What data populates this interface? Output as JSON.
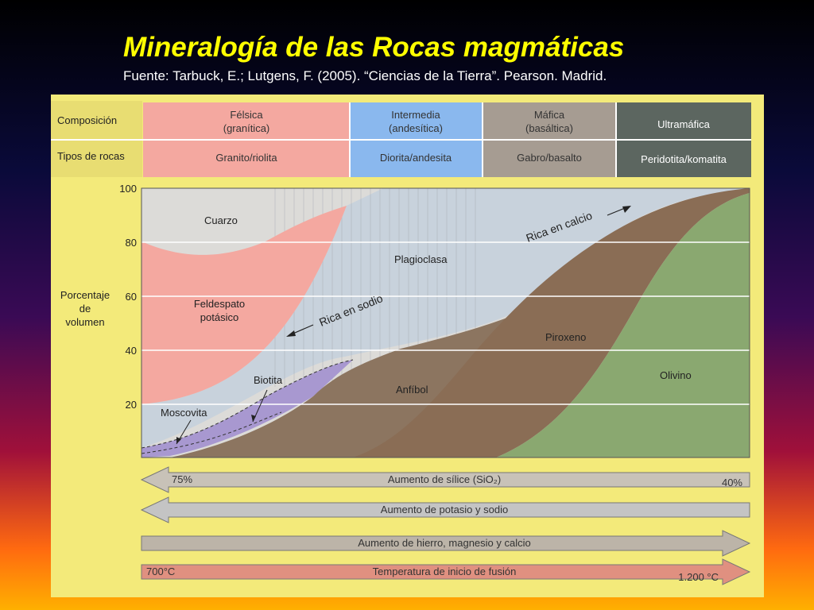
{
  "title": "Mineralogía de las Rocas magmáticas",
  "source": "Fuente: Tarbuck, E.; Lutgens, F. (2005). “Ciencias de la Tierra”. Pearson. Madrid.",
  "header": {
    "row_labels": {
      "composition": "Composición",
      "rock_types": "Tipos de rocas"
    },
    "columns": [
      {
        "composition_line1": "Félsica",
        "composition_line2": "(granítica)",
        "rock": "Granito/riolita",
        "color": "#f4a8a0"
      },
      {
        "composition_line1": "Intermedia",
        "composition_line2": "(andesítica)",
        "rock": "Diorita/andesita",
        "color": "#8ab8ee"
      },
      {
        "composition_line1": "Máfica",
        "composition_line2": "(basáltica)",
        "rock": "Gabro/basalto",
        "color": "#a69c92"
      },
      {
        "composition_line1": "Ultramáfica",
        "composition_line2": "",
        "rock": "Peridotita/komatita",
        "color": "#5c6660"
      }
    ]
  },
  "axis": {
    "label_line1": "Porcentaje",
    "label_line2": "de",
    "label_line3": "volumen",
    "ticks": [
      "100",
      "80",
      "60",
      "40",
      "20"
    ]
  },
  "minerals": {
    "quartz": "Cuarzo",
    "k_feldspar_line1": "Feldespato",
    "k_feldspar_line2": "potásico",
    "plagioclase": "Plagioclasa",
    "biotite": "Biotita",
    "muscovite": "Moscovita",
    "amphibole": "Anfíbol",
    "pyroxene": "Piroxeno",
    "olivine": "Olivino"
  },
  "annotations": {
    "sodium_rich": "Rica en sodio",
    "calcium_rich": "Rica en calcio"
  },
  "mineral_colors": {
    "quartz": "#dcdbd8",
    "feldspar": "#f4a8a0",
    "plagioclase": "#c8d2dc",
    "biotite": "#a898d0",
    "amphibole": "#8c7560",
    "pyroxene": "#8a6d55",
    "olivine": "#8aa870"
  },
  "arrows": {
    "silica": {
      "label": "Aumento de sílice (SiO₂)",
      "left_value": "75%",
      "right_value": "40%"
    },
    "potassium": {
      "label": "Aumento de potasio y sodio"
    },
    "iron": {
      "label": "Aumento de hierro, magnesio y calcio"
    },
    "temperature": {
      "label": "Temperatura de inicio de fusión",
      "left_value": "700°C",
      "right_value": "1.200 °C"
    }
  }
}
